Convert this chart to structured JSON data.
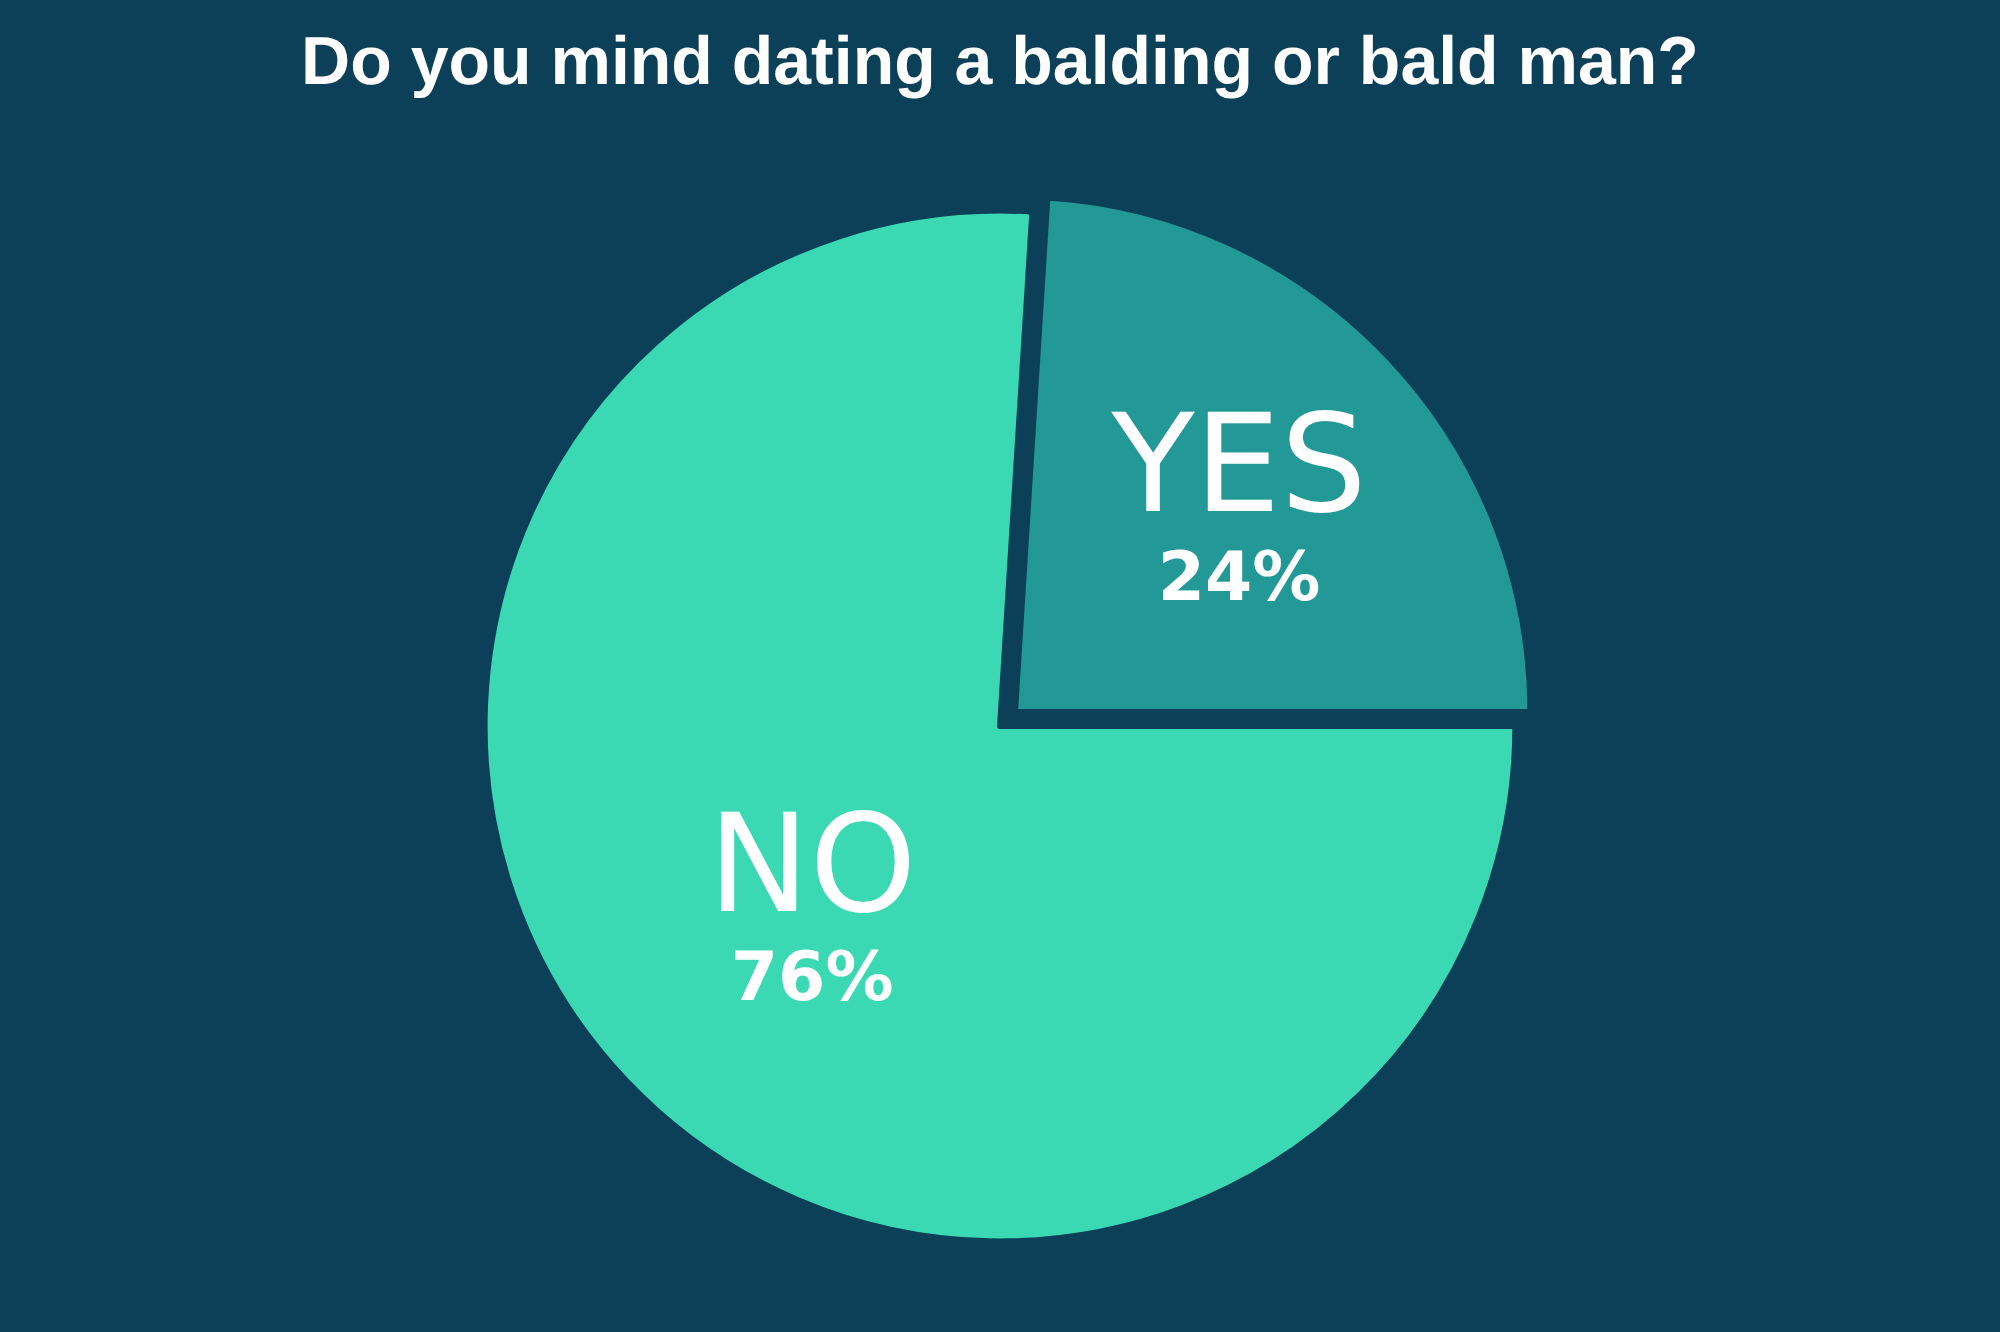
{
  "chart_data": {
    "type": "pie",
    "title": "Do you mind dating a balding or bald man?",
    "categories": [
      "NO",
      "YES"
    ],
    "values": [
      76,
      24
    ],
    "value_labels": [
      "76%",
      "24%"
    ],
    "colors": [
      "#3ad9b4",
      "#229897"
    ],
    "legend": false
  }
}
